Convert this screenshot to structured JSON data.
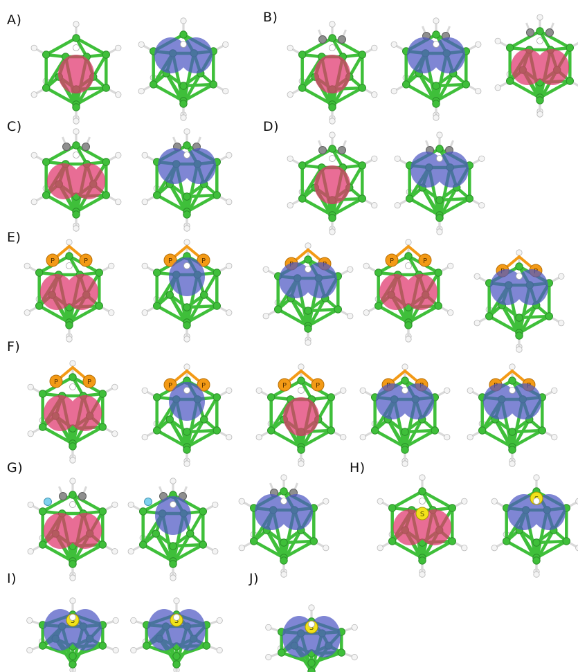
{
  "colors": {
    "boron": "#3fbf3a",
    "boron_dark": "#2a8f28",
    "hydrogen": "#f4f4f4",
    "carbon": "#8f8f8f",
    "phosphorus": "#f39a16",
    "sulfur": "#f2e21a",
    "nitrogen": "#7fd2ee",
    "lobe_red": "#e0356d",
    "lobe_blue": "#4e58c4"
  },
  "panels": [
    {
      "label": "A)",
      "molecules": [
        {
          "lobe": "red",
          "shape": "single",
          "hetero": "none",
          "view": "front"
        },
        {
          "lobe": "blue",
          "shape": "double",
          "hetero": "none",
          "view": "front"
        }
      ]
    },
    {
      "label": "B)",
      "molecules": [
        {
          "lobe": "red",
          "shape": "single",
          "hetero": "carbon",
          "view": "front"
        },
        {
          "lobe": "blue",
          "shape": "double",
          "hetero": "carbon",
          "view": "front"
        },
        {
          "lobe": "red",
          "shape": "double",
          "hetero": "carbon",
          "view": "front"
        }
      ]
    },
    {
      "label": "C)",
      "molecules": [
        {
          "lobe": "red",
          "shape": "double",
          "hetero": "carbon",
          "view": "front"
        },
        {
          "lobe": "blue",
          "shape": "double",
          "hetero": "carbon",
          "view": "front"
        }
      ]
    },
    {
      "label": "D)",
      "molecules": [
        {
          "lobe": "red",
          "shape": "single",
          "hetero": "carbon",
          "view": "front"
        },
        {
          "lobe": "blue",
          "shape": "double",
          "hetero": "carbon",
          "view": "front"
        }
      ]
    },
    {
      "label": "E)",
      "molecules": [
        {
          "lobe": "red",
          "shape": "double",
          "hetero": "phosphorus",
          "view": "front"
        },
        {
          "lobe": "blue",
          "shape": "single",
          "hetero": "phosphorus",
          "view": "front"
        },
        {
          "lobe": "blue",
          "shape": "double",
          "hetero": "phosphorus",
          "view": "front"
        },
        {
          "lobe": "red",
          "shape": "double",
          "hetero": "phosphorus",
          "view": "front"
        },
        {
          "lobe": "blue",
          "shape": "double",
          "hetero": "phosphorus",
          "view": "front"
        }
      ]
    },
    {
      "label": "F)",
      "molecules": [
        {
          "lobe": "red",
          "shape": "double",
          "hetero": "phosphorus",
          "view": "front"
        },
        {
          "lobe": "blue",
          "shape": "single",
          "hetero": "phosphorus",
          "view": "front"
        },
        {
          "lobe": "red",
          "shape": "single",
          "hetero": "phosphorus",
          "view": "front"
        },
        {
          "lobe": "blue",
          "shape": "double",
          "hetero": "phosphorus",
          "view": "front"
        },
        {
          "lobe": "blue",
          "shape": "double",
          "hetero": "phosphorus",
          "view": "front"
        }
      ]
    },
    {
      "label": "G)",
      "molecules": [
        {
          "lobe": "red",
          "shape": "double",
          "hetero": "nitrogen",
          "view": "front"
        },
        {
          "lobe": "blue",
          "shape": "single",
          "hetero": "nitrogen",
          "view": "front"
        },
        {
          "lobe": "blue",
          "shape": "double",
          "hetero": "carbon",
          "view": "front"
        }
      ]
    },
    {
      "label": "H)",
      "molecules": [
        {
          "lobe": "red",
          "shape": "double",
          "hetero": "sulfur",
          "view": "front"
        },
        {
          "lobe": "blue",
          "shape": "double",
          "hetero": "sulfur",
          "view": "front"
        }
      ]
    },
    {
      "label": "I)",
      "molecules": [
        {
          "lobe": "blue",
          "shape": "double",
          "hetero": "sulfur",
          "view": "side"
        },
        {
          "lobe": "blue",
          "shape": "double",
          "hetero": "sulfur",
          "view": "side"
        }
      ]
    },
    {
      "label": "J)",
      "molecules": [
        {
          "lobe": "blue",
          "shape": "double",
          "hetero": "sulfur",
          "view": "side"
        }
      ]
    }
  ],
  "atom_labels": {
    "phosphorus": "P",
    "sulfur": "S"
  }
}
